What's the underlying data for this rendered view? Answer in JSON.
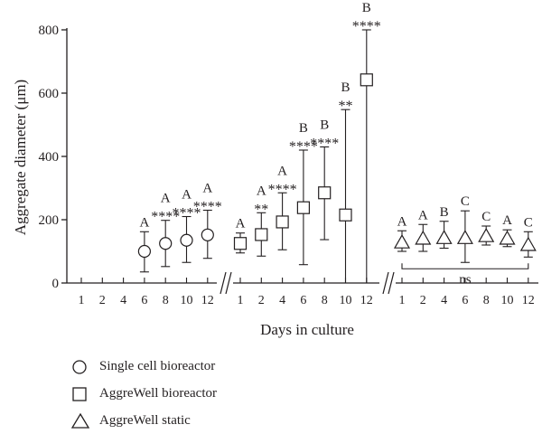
{
  "chart_data": {
    "type": "scatter",
    "ylabel": "Aggregate diameter (μm)",
    "xlabel": "Days in culture",
    "ylim": [
      0,
      800
    ],
    "yticks": [
      0,
      200,
      400,
      600,
      800
    ],
    "grid": false,
    "legend_placement": "bottom-left",
    "groups": [
      {
        "name": "Single cell bioreactor",
        "marker": "circle",
        "days": [
          1,
          2,
          4,
          6,
          8,
          10,
          12
        ],
        "points": [
          {
            "day": 6,
            "mean": 100,
            "low": 35,
            "high": 162,
            "letter": "A",
            "stars": ""
          },
          {
            "day": 8,
            "mean": 125,
            "low": 52,
            "high": 198,
            "letter": "A",
            "stars": "****"
          },
          {
            "day": 10,
            "mean": 135,
            "low": 65,
            "high": 210,
            "letter": "A",
            "stars": "****"
          },
          {
            "day": 12,
            "mean": 152,
            "low": 78,
            "high": 230,
            "letter": "A",
            "stars": "****"
          }
        ]
      },
      {
        "name": "AggreWell bioreactor",
        "marker": "square",
        "days": [
          1,
          2,
          4,
          6,
          8,
          10,
          12
        ],
        "points": [
          {
            "day": 1,
            "mean": 125,
            "low": 95,
            "high": 158,
            "letter": "A",
            "stars": ""
          },
          {
            "day": 2,
            "mean": 153,
            "low": 85,
            "high": 222,
            "letter": "A",
            "stars": "**"
          },
          {
            "day": 4,
            "mean": 193,
            "low": 105,
            "high": 285,
            "letter": "A",
            "stars": "****"
          },
          {
            "day": 6,
            "mean": 238,
            "low": 58,
            "high": 420,
            "letter": "B",
            "stars": "****"
          },
          {
            "day": 8,
            "mean": 285,
            "low": 137,
            "high": 430,
            "letter": "B",
            "stars": "****"
          },
          {
            "day": 10,
            "mean": 215,
            "low": 0,
            "high": 548,
            "letter": "B",
            "stars": "**"
          },
          {
            "day": 12,
            "mean": 642,
            "low": 0,
            "high": 800,
            "letter": "B",
            "stars": "****"
          }
        ]
      },
      {
        "name": "AggreWell static",
        "marker": "triangle",
        "days": [
          1,
          2,
          4,
          6,
          8,
          10,
          12
        ],
        "points": [
          {
            "day": 1,
            "mean": 128,
            "low": 100,
            "high": 165,
            "letter": "A",
            "stars": ""
          },
          {
            "day": 2,
            "mean": 140,
            "low": 100,
            "high": 185,
            "letter": "A",
            "stars": ""
          },
          {
            "day": 4,
            "mean": 142,
            "low": 110,
            "high": 195,
            "letter": "B",
            "stars": ""
          },
          {
            "day": 6,
            "mean": 142,
            "low": 65,
            "high": 228,
            "letter": "C",
            "stars": ""
          },
          {
            "day": 8,
            "mean": 148,
            "low": 120,
            "high": 180,
            "letter": "C",
            "stars": ""
          },
          {
            "day": 10,
            "mean": 140,
            "low": 115,
            "high": 168,
            "letter": "A",
            "stars": ""
          },
          {
            "day": 12,
            "mean": 120,
            "low": 82,
            "high": 162,
            "letter": "C",
            "stars": ""
          }
        ]
      }
    ],
    "annotations": [
      {
        "text": "ns",
        "spans_group": "AggreWell static"
      }
    ]
  }
}
